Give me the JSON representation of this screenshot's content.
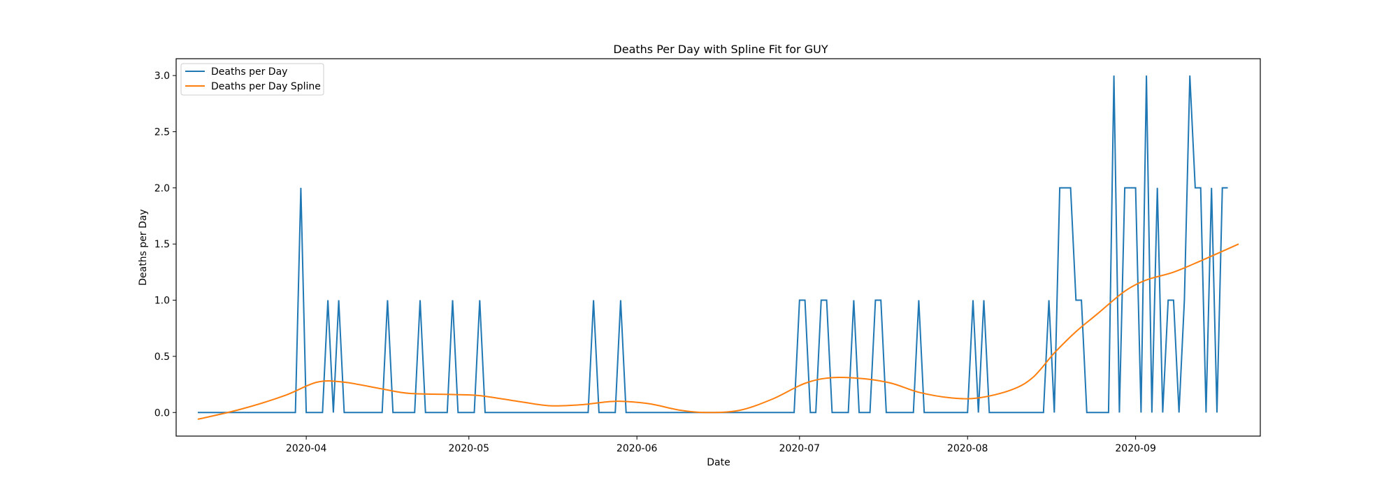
{
  "chart_data": {
    "type": "line",
    "title": "Deaths Per Day with Spline Fit for GUY",
    "xlabel": "Date",
    "ylabel": "Deaths per Day",
    "x_start": "2020-03-12",
    "xlim": [
      "2020-03-08",
      "2020-09-24"
    ],
    "ylim": [
      -0.21,
      3.15
    ],
    "xticks": [
      "2020-04",
      "2020-05",
      "2020-06",
      "2020-07",
      "2020-08",
      "2020-09"
    ],
    "yticks": [
      "0.0",
      "0.5",
      "1.0",
      "1.5",
      "2.0",
      "2.5",
      "3.0"
    ],
    "grid": false,
    "legend_position": "top-left",
    "series": [
      {
        "name": "Deaths per Day",
        "color": "#1f77b4",
        "values": [
          0,
          0,
          0,
          0,
          0,
          0,
          0,
          0,
          0,
          0,
          0,
          0,
          0,
          0,
          0,
          0,
          0,
          0,
          0,
          2,
          0,
          0,
          0,
          0,
          1,
          0,
          1,
          0,
          0,
          0,
          0,
          0,
          0,
          0,
          0,
          1,
          0,
          0,
          0,
          0,
          0,
          1,
          0,
          0,
          0,
          0,
          0,
          1,
          0,
          0,
          0,
          0,
          1,
          0,
          0,
          0,
          0,
          0,
          0,
          0,
          0,
          0,
          0,
          0,
          0,
          0,
          0,
          0,
          0,
          0,
          0,
          0,
          0,
          1,
          0,
          0,
          0,
          0,
          1,
          0,
          0,
          0,
          0,
          0,
          0,
          0,
          0,
          0,
          0,
          0,
          0,
          0,
          0,
          0,
          0,
          0,
          0,
          0,
          0,
          0,
          0,
          0,
          0,
          0,
          0,
          0,
          0,
          0,
          0,
          0,
          0,
          1,
          1,
          0,
          0,
          1,
          1,
          0,
          0,
          0,
          0,
          1,
          0,
          0,
          0,
          1,
          1,
          0,
          0,
          0,
          0,
          0,
          0,
          1,
          0,
          0,
          0,
          0,
          0,
          0,
          0,
          0,
          0,
          1,
          0,
          1,
          0,
          0,
          0,
          0,
          0,
          0,
          0,
          0,
          0,
          0,
          0,
          1,
          0,
          2,
          2,
          2,
          1,
          1,
          0,
          0,
          0,
          0,
          0,
          3,
          0,
          2,
          2,
          2,
          0,
          3,
          0,
          2,
          0,
          1,
          1,
          0,
          1,
          3,
          2,
          2,
          0,
          2,
          0,
          2,
          2
        ]
      },
      {
        "name": "Deaths per Day Spline",
        "color": "#ff7f0e",
        "points": [
          [
            "2020-03-12",
            -0.06
          ],
          [
            "2020-03-20",
            0.03
          ],
          [
            "2020-03-28",
            0.15
          ],
          [
            "2020-04-03",
            0.27
          ],
          [
            "2020-04-08",
            0.27
          ],
          [
            "2020-04-15",
            0.21
          ],
          [
            "2020-04-20",
            0.17
          ],
          [
            "2020-04-28",
            0.16
          ],
          [
            "2020-05-03",
            0.15
          ],
          [
            "2020-05-10",
            0.1
          ],
          [
            "2020-05-16",
            0.06
          ],
          [
            "2020-05-22",
            0.07
          ],
          [
            "2020-05-28",
            0.1
          ],
          [
            "2020-06-03",
            0.08
          ],
          [
            "2020-06-09",
            0.02
          ],
          [
            "2020-06-14",
            0.0
          ],
          [
            "2020-06-20",
            0.02
          ],
          [
            "2020-06-26",
            0.12
          ],
          [
            "2020-07-02",
            0.26
          ],
          [
            "2020-07-07",
            0.31
          ],
          [
            "2020-07-13",
            0.3
          ],
          [
            "2020-07-18",
            0.26
          ],
          [
            "2020-07-23",
            0.18
          ],
          [
            "2020-07-29",
            0.13
          ],
          [
            "2020-08-03",
            0.13
          ],
          [
            "2020-08-09",
            0.2
          ],
          [
            "2020-08-13",
            0.31
          ],
          [
            "2020-08-17",
            0.53
          ],
          [
            "2020-08-21",
            0.72
          ],
          [
            "2020-08-25",
            0.88
          ],
          [
            "2020-08-30",
            1.08
          ],
          [
            "2020-09-03",
            1.18
          ],
          [
            "2020-09-08",
            1.25
          ],
          [
            "2020-09-13",
            1.35
          ],
          [
            "2020-09-20",
            1.5
          ]
        ]
      }
    ]
  }
}
